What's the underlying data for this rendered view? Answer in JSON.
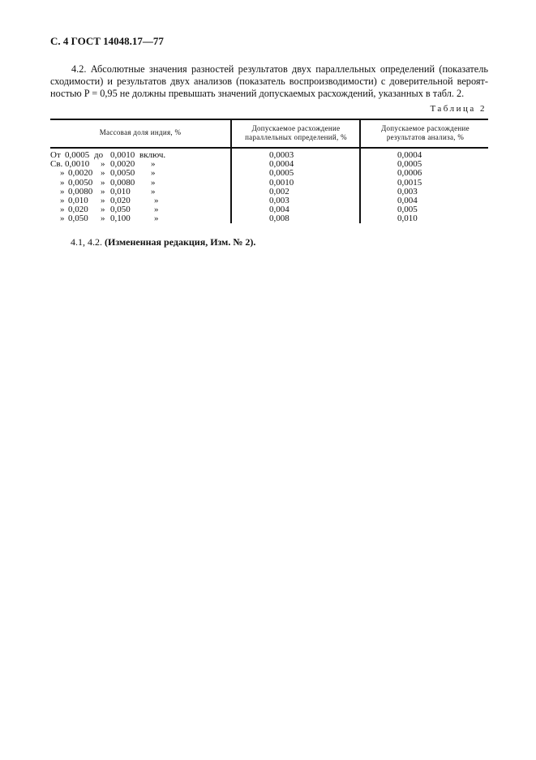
{
  "header": "С. 4 ГОСТ 14048.17—77",
  "paragraph": {
    "lines": [
      "4.2. Абсолютные значения разностей результатов двух параллельных определений (показатель",
      "сходимости) и результатов двух анализов (показатель воспроизводимости) с доверительной вероят-",
      "ностью P = 0,95 не должны превышать значений допускаемых расхождений, указанных в табл. 2."
    ]
  },
  "table": {
    "caption": "Таблица 2",
    "headers": [
      "Массовая доля индия, %",
      "Допускаемое расхождение параллельных определений, %",
      "Допускаемое расхождение результатов анализа, %"
    ],
    "rows": [
      {
        "prefix": "От",
        "from": "0,0005",
        "sep": "до",
        "to": "0,0010",
        "suffix": "включ.",
        "parallel": "0,0003",
        "analysis": "0,0004"
      },
      {
        "prefix": "Св.",
        "from": "0,0010",
        "sep": "»",
        "to": "0,0020",
        "suffix": "»",
        "parallel": "0,0004",
        "analysis": "0,0005"
      },
      {
        "prefix": "»",
        "from": "0,0020",
        "sep": "»",
        "to": "0,0050",
        "suffix": "»",
        "parallel": "0,0005",
        "analysis": "0,0006"
      },
      {
        "prefix": "»",
        "from": "0,0050",
        "sep": "»",
        "to": "0,0080",
        "suffix": "»",
        "parallel": "0,0010",
        "analysis": "0,0015"
      },
      {
        "prefix": "»",
        "from": "0,0080",
        "sep": "»",
        "to": "0,010",
        "suffix": "»",
        "parallel": "0,002",
        "analysis": "0,003"
      },
      {
        "prefix": "»",
        "from": "0,010",
        "sep": "»",
        "to": "0,020",
        "suffix": "»",
        "parallel": "0,003",
        "analysis": "0,004"
      },
      {
        "prefix": "»",
        "from": "0,020",
        "sep": "»",
        "to": "0,050",
        "suffix": "»",
        "parallel": "0,004",
        "analysis": "0,005"
      },
      {
        "prefix": "»",
        "from": "0,050",
        "sep": "»",
        "to": "0,100",
        "suffix": "»",
        "parallel": "0,008",
        "analysis": "0,010"
      }
    ]
  },
  "footnote": {
    "refs": "4.1, 4.2.",
    "text": "(Измененная редакция, Изм. № 2)."
  }
}
